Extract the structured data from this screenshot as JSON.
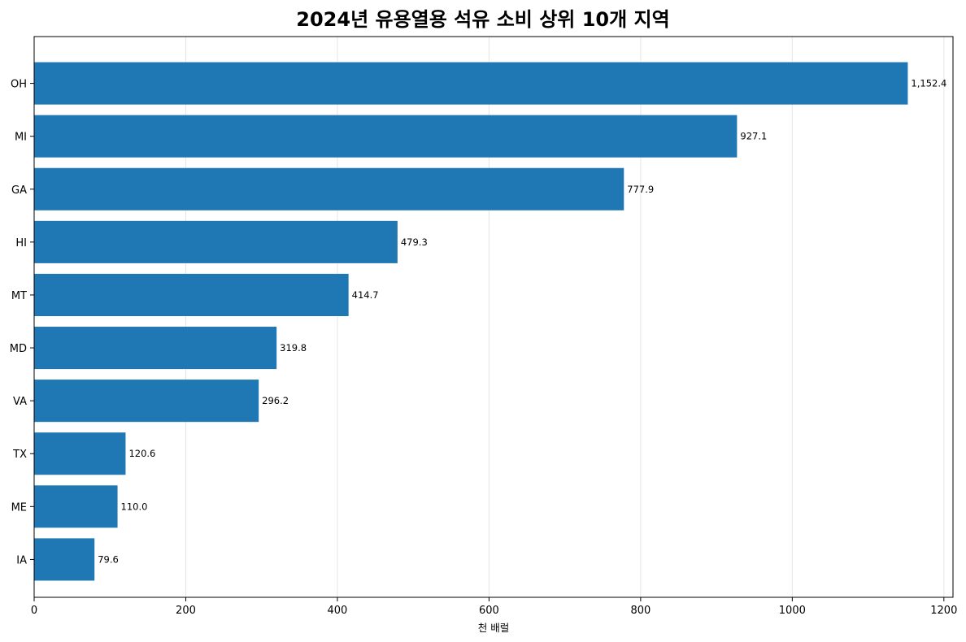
{
  "chart_data": {
    "type": "bar",
    "orientation": "horizontal",
    "title": "2024년 유용열용 석유 소비 상위 10개 지역",
    "xlabel": "천 배럴",
    "ylabel": "",
    "categories": [
      "OH",
      "MI",
      "GA",
      "HI",
      "MT",
      "MD",
      "VA",
      "TX",
      "ME",
      "IA"
    ],
    "values": [
      1152.4,
      927.1,
      777.9,
      479.3,
      414.7,
      319.8,
      296.2,
      120.6,
      110.0,
      79.6
    ],
    "value_labels": [
      "1,152.4",
      "927.1",
      "777.9",
      "479.3",
      "414.7",
      "319.8",
      "296.2",
      "120.6",
      "110.0",
      "79.6"
    ],
    "xlim": [
      0,
      1212
    ],
    "xticks": [
      0,
      200,
      400,
      600,
      800,
      1000,
      1200
    ],
    "grid": "x",
    "bar_color": "#1f77b4"
  }
}
